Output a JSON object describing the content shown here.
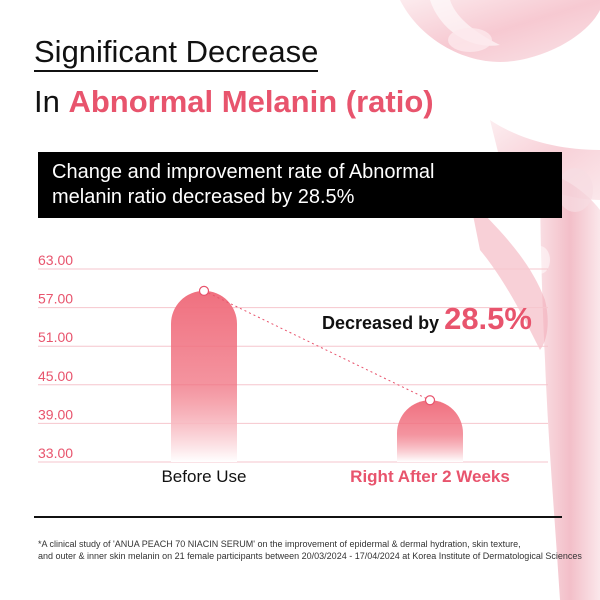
{
  "title": {
    "line1": "Significant Decrease",
    "line2_prefix": "In ",
    "line2_accent": "Abnormal Melanin (ratio)"
  },
  "banner": {
    "line1": "Change and improvement rate of Abnormal",
    "line2": "melanin ratio decreased by 28.5%"
  },
  "annotation": {
    "label": "Decreased by ",
    "value": "28.5%"
  },
  "footnote": {
    "line1": "*A clinical study of 'ANUA PEACH 70 NIACIN SERUM' on the improvement of epidermal & dermal hydration, skin texture,",
    "line2": "and outer & inner skin melanin on 21 female participants between 20/03/2024 - 17/04/2024 at Korea Institute of Dermatological Sciences"
  },
  "colors": {
    "accent": "#e8546d",
    "bar_top": "#f0707f",
    "bar_bottom": "#ffffff",
    "grid": "#f6c6cd"
  },
  "chart_data": {
    "type": "bar",
    "categories": [
      "Before Use",
      "Right After 2 Weeks"
    ],
    "values": [
      59.6,
      42.6
    ],
    "yticks": [
      "63.00",
      "57.00",
      "51.00",
      "45.00",
      "39.00",
      "33.00"
    ],
    "ylim": [
      33,
      63
    ],
    "grid": true,
    "category_colors": [
      "#111111",
      "#e8546d"
    ],
    "connector": "dotted"
  }
}
